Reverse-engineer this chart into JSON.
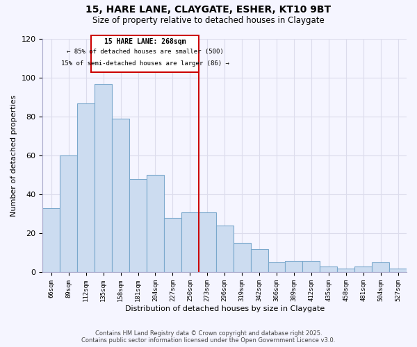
{
  "title": "15, HARE LANE, CLAYGATE, ESHER, KT10 9BT",
  "subtitle": "Size of property relative to detached houses in Claygate",
  "xlabel": "Distribution of detached houses by size in Claygate",
  "ylabel": "Number of detached properties",
  "categories": [
    "66sqm",
    "89sqm",
    "112sqm",
    "135sqm",
    "158sqm",
    "181sqm",
    "204sqm",
    "227sqm",
    "250sqm",
    "273sqm",
    "296sqm",
    "319sqm",
    "342sqm",
    "366sqm",
    "389sqm",
    "412sqm",
    "435sqm",
    "458sqm",
    "481sqm",
    "504sqm",
    "527sqm"
  ],
  "values": [
    33,
    60,
    87,
    97,
    79,
    48,
    50,
    28,
    31,
    31,
    24,
    15,
    12,
    5,
    6,
    6,
    3,
    2,
    3,
    5,
    2
  ],
  "bar_color": "#ccdcf0",
  "bar_edge_color": "#7aa8cc",
  "vline_color": "#cc0000",
  "annotation_title": "15 HARE LANE: 268sqm",
  "annotation_line1": "← 85% of detached houses are smaller (500)",
  "annotation_line2": "15% of semi-detached houses are larger (86) →",
  "ylim": [
    0,
    120
  ],
  "yticks": [
    0,
    20,
    40,
    60,
    80,
    100,
    120
  ],
  "footer_line1": "Contains HM Land Registry data © Crown copyright and database right 2025.",
  "footer_line2": "Contains public sector information licensed under the Open Government Licence v3.0.",
  "bg_color": "#f5f5ff",
  "grid_color": "#dcdcec"
}
